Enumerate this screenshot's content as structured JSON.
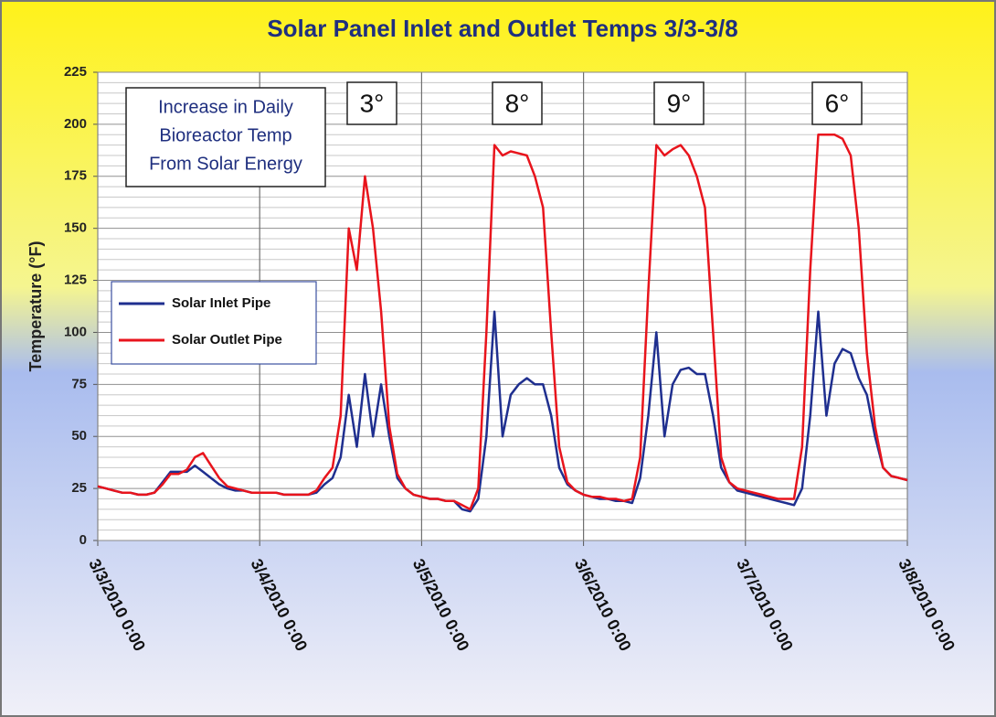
{
  "chart_data": {
    "type": "line",
    "title": "Solar Panel Inlet and Outlet Temps 3/3-3/8",
    "y_label": "Temperature (°F)",
    "annotation_box": [
      "Increase in Daily",
      "Bioreactor Temp",
      "From Solar Energy"
    ],
    "annotations": [
      "3°",
      "8°",
      "9°",
      "6°"
    ],
    "legend": "left",
    "grid": true,
    "xlim": [
      0,
      5
    ],
    "xticks": [
      {
        "value": 0,
        "label": "3/3/2010 0:00"
      },
      {
        "value": 1,
        "label": "3/4/2010 0:00"
      },
      {
        "value": 2,
        "label": "3/5/2010 0:00"
      },
      {
        "value": 3,
        "label": "3/6/2010 0:00"
      },
      {
        "value": 4,
        "label": "3/7/2010 0:00"
      },
      {
        "value": 5,
        "label": "3/8/2010 0:00"
      }
    ],
    "ylim": [
      0,
      225
    ],
    "yticks": [
      0,
      25,
      50,
      75,
      100,
      125,
      150,
      175,
      200,
      225
    ],
    "x": [
      0,
      0.05,
      0.1,
      0.15,
      0.2,
      0.25,
      0.3,
      0.35,
      0.4,
      0.45,
      0.5,
      0.55,
      0.6,
      0.65,
      0.7,
      0.75,
      0.8,
      0.85,
      0.9,
      0.95,
      1,
      1.05,
      1.1,
      1.15,
      1.2,
      1.25,
      1.3,
      1.35,
      1.4,
      1.45,
      1.5,
      1.55,
      1.6,
      1.65,
      1.7,
      1.75,
      1.8,
      1.85,
      1.9,
      1.95,
      2,
      2.05,
      2.1,
      2.15,
      2.2,
      2.25,
      2.3,
      2.35,
      2.4,
      2.45,
      2.5,
      2.55,
      2.6,
      2.65,
      2.7,
      2.75,
      2.8,
      2.85,
      2.9,
      2.95,
      3,
      3.05,
      3.1,
      3.15,
      3.2,
      3.25,
      3.3,
      3.35,
      3.4,
      3.45,
      3.5,
      3.55,
      3.6,
      3.65,
      3.7,
      3.75,
      3.8,
      3.85,
      3.9,
      3.95,
      4,
      4.05,
      4.1,
      4.15,
      4.2,
      4.25,
      4.3,
      4.35,
      4.4,
      4.45,
      4.5,
      4.55,
      4.6,
      4.65,
      4.7,
      4.75,
      4.8,
      4.85,
      4.9,
      4.95,
      5
    ],
    "series": [
      {
        "name": "Solar Inlet Pipe",
        "color": "#1f2f8f",
        "values": [
          26,
          25,
          24,
          23,
          23,
          22,
          22,
          23,
          28,
          33,
          33,
          33,
          36,
          33,
          30,
          27,
          25,
          24,
          24,
          23,
          23,
          23,
          23,
          22,
          22,
          22,
          22,
          23,
          27,
          30,
          40,
          70,
          45,
          80,
          50,
          75,
          50,
          30,
          25,
          22,
          21,
          20,
          20,
          19,
          19,
          15,
          14,
          20,
          50,
          110,
          50,
          70,
          75,
          78,
          75,
          75,
          60,
          35,
          27,
          24,
          22,
          21,
          20,
          20,
          19,
          19,
          18,
          30,
          60,
          100,
          50,
          75,
          82,
          83,
          80,
          80,
          60,
          35,
          28,
          24,
          23,
          22,
          21,
          20,
          19,
          18,
          17,
          25,
          60,
          110,
          60,
          85,
          92,
          90,
          78,
          70,
          50,
          35,
          31,
          30,
          29
        ]
      },
      {
        "name": "Solar Outlet Pipe",
        "color": "#e8141c",
        "values": [
          26,
          25,
          24,
          23,
          23,
          22,
          22,
          23,
          27,
          32,
          32,
          34,
          40,
          42,
          36,
          30,
          26,
          25,
          24,
          23,
          23,
          23,
          23,
          22,
          22,
          22,
          22,
          24,
          30,
          35,
          60,
          150,
          130,
          175,
          150,
          110,
          55,
          32,
          25,
          22,
          21,
          20,
          20,
          19,
          19,
          17,
          15,
          25,
          100,
          190,
          185,
          187,
          186,
          185,
          175,
          160,
          100,
          45,
          28,
          24,
          22,
          21,
          21,
          20,
          20,
          19,
          20,
          40,
          120,
          190,
          185,
          188,
          190,
          185,
          175,
          160,
          100,
          40,
          28,
          25,
          24,
          23,
          22,
          21,
          20,
          20,
          20,
          45,
          130,
          195,
          195,
          195,
          193,
          185,
          150,
          90,
          55,
          35,
          31,
          30,
          29
        ]
      }
    ]
  }
}
